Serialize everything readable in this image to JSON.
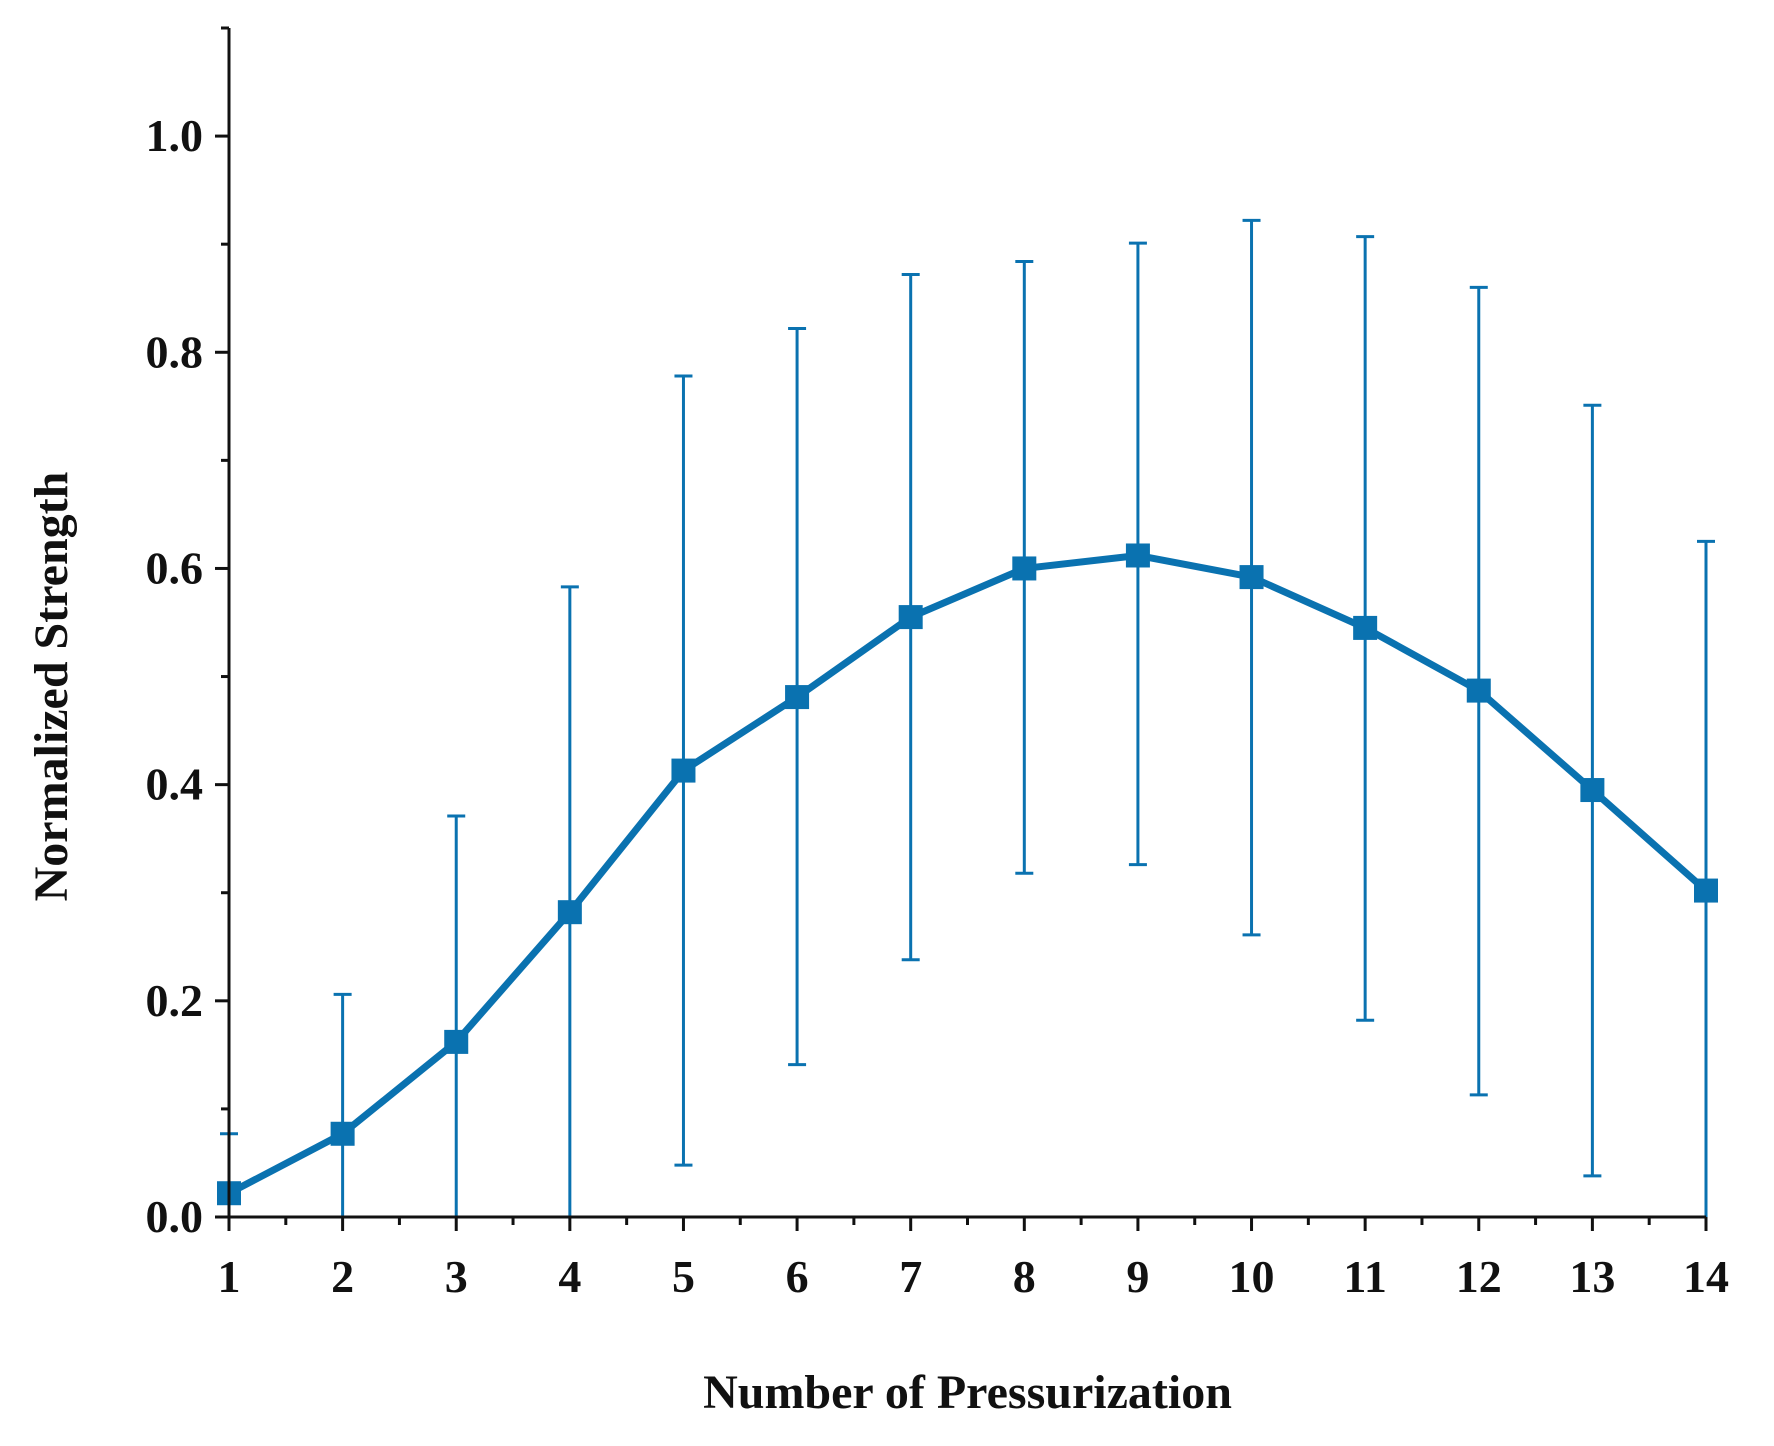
{
  "colors": {
    "series": "#0a72b0",
    "axis": "#111111"
  },
  "chart_data": {
    "type": "line",
    "title": "",
    "xlabel": "Number of Pressurization",
    "ylabel": "Normalized Strength",
    "xlim": [
      1,
      14
    ],
    "ylim": [
      0.0,
      1.1
    ],
    "x_ticks": [
      1,
      2,
      3,
      4,
      5,
      6,
      7,
      8,
      9,
      10,
      11,
      12,
      13,
      14
    ],
    "x_tick_labels": [
      "1",
      "2",
      "3",
      "4",
      "5",
      "6",
      "7",
      "8",
      "9",
      "10",
      "11",
      "12",
      "13",
      "14"
    ],
    "y_ticks": [
      0.0,
      0.2,
      0.4,
      0.6,
      0.8,
      1.0
    ],
    "y_tick_labels": [
      "0.0",
      "0.2",
      "0.4",
      "0.6",
      "0.8",
      "1.0"
    ],
    "grid": false,
    "series": [
      {
        "name": "Normalized Strength",
        "marker": "square",
        "x": [
          1,
          2,
          3,
          4,
          5,
          6,
          7,
          8,
          9,
          10,
          11,
          12,
          13,
          14
        ],
        "values": [
          0.022,
          0.077,
          0.162,
          0.282,
          0.413,
          0.481,
          0.555,
          0.6,
          0.612,
          0.592,
          0.545,
          0.487,
          0.395,
          0.302
        ],
        "error_upper": [
          0.077,
          0.206,
          0.371,
          0.583,
          0.778,
          0.822,
          0.872,
          0.884,
          0.901,
          0.922,
          0.907,
          0.86,
          0.751,
          0.625
        ],
        "error_lower": [
          0.0,
          0.0,
          0.0,
          0.0,
          0.048,
          0.141,
          0.238,
          0.318,
          0.326,
          0.261,
          0.182,
          0.113,
          0.038,
          0.0
        ]
      }
    ]
  }
}
